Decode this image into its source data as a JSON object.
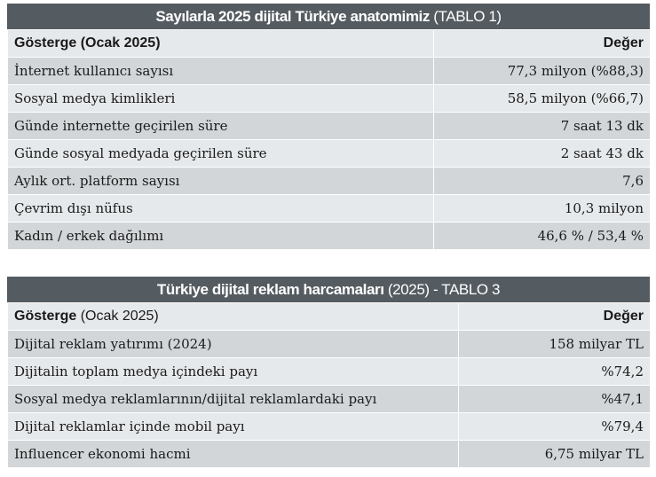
{
  "table1": {
    "title_bold": "Sayılarla 2025 dijital Türkiye anatomimiz",
    "title_light": " (TABLO 1)",
    "header": {
      "label": "Gösterge (Ocak 2025)",
      "value": "Değer"
    },
    "rows": [
      {
        "label": "İnternet kullanıcı sayısı",
        "value": "77,3 milyon (%88,3)"
      },
      {
        "label": "Sosyal medya kimlikleri",
        "value": "58,5 milyon (%66,7)"
      },
      {
        "label": "Günde internette geçirilen süre",
        "value": "7 saat 13 dk"
      },
      {
        "label": "Günde sosyal medyada geçirilen süre",
        "value": "2 saat 43 dk"
      },
      {
        "label": "Aylık ort. platform sayısı",
        "value": "7,6"
      },
      {
        "label": "Çevrim dışı nüfus",
        "value": "10,3 milyon"
      },
      {
        "label": "Kadın / erkek dağılımı",
        "value": "46,6 % / 53,4 %"
      }
    ]
  },
  "table2": {
    "title_bold": "Türkiye dijital reklam harcamaları",
    "title_light": " (2025) - TABLO 3",
    "header": {
      "label_bold": "Gösterge",
      "label_rest": " (Ocak 2025)",
      "value": "Değer"
    },
    "rows": [
      {
        "label": "Dijital reklam yatırımı (2024)",
        "value": "158 milyar TL"
      },
      {
        "label": "Dijitalin toplam medya içindeki payı",
        "value": "%74,2"
      },
      {
        "label": "Sosyal medya reklamlarının/dijital reklamlardaki payı",
        "value": "%47,1"
      },
      {
        "label": "Dijital reklamlar içinde mobil payı",
        "value": "%79,4"
      },
      {
        "label": "Influencer ekonomi hacmi",
        "value": "6,75 milyar TL"
      }
    ]
  },
  "colors": {
    "title_bg": "#545b61",
    "row_light": "#e6e9eb",
    "row_dark": "#d2d6d9"
  }
}
